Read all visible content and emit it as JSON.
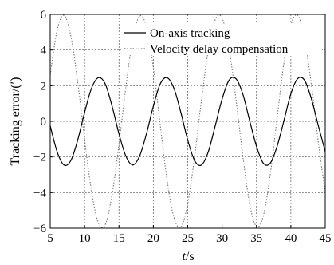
{
  "chart_data": {
    "type": "line",
    "xlabel_var": "t",
    "xlabel_unit": "/s",
    "ylabel": "Tracking error/(′)",
    "xlim": [
      5,
      45
    ],
    "ylim": [
      -6,
      6
    ],
    "x_ticks": [
      5,
      10,
      15,
      20,
      25,
      30,
      35,
      40,
      45
    ],
    "y_ticks": [
      -6,
      -4,
      -2,
      0,
      2,
      4,
      6
    ],
    "x_tick_labels": [
      "5",
      "10",
      "15",
      "20",
      "25",
      "30",
      "35",
      "40",
      "45"
    ],
    "y_tick_labels": [
      "−6",
      "−4",
      "−2",
      "0",
      "2",
      "4",
      "6"
    ],
    "grid": true,
    "legend_position": "top-right",
    "series": [
      {
        "name": "On-axis tracking",
        "style": "solid",
        "color": "#000000",
        "x": [
          5,
          6,
          7,
          8,
          9,
          10,
          11,
          12,
          13,
          14,
          15,
          16,
          17,
          18,
          19,
          20,
          21,
          22,
          23,
          24,
          25,
          26,
          27,
          28,
          29,
          30,
          31,
          32,
          33,
          34,
          35,
          36,
          37,
          38,
          39,
          40,
          41,
          42,
          43,
          44,
          45
        ],
        "y": [
          -0.25,
          -1.7,
          -2.45,
          -2.2,
          -1.05,
          0.5,
          1.85,
          2.45,
          2.1,
          0.85,
          -0.7,
          -1.95,
          -2.45,
          -1.95,
          -0.7,
          0.85,
          2.1,
          2.45,
          1.85,
          0.5,
          -1.05,
          -2.2,
          -2.45,
          -1.7,
          -0.25,
          1.25,
          2.3,
          2.4,
          1.55,
          0.05,
          -1.4,
          -2.35,
          -2.35,
          -1.4,
          0.05,
          1.55,
          2.4,
          2.3,
          1.25,
          -0.25,
          -1.7
        ]
      },
      {
        "name": "Velocity delay compensation",
        "style": "dotted",
        "color": "#7a7a7a",
        "x": [
          5,
          6,
          7,
          8,
          9,
          10,
          11,
          12,
          13,
          14,
          15,
          16,
          17,
          18,
          19,
          20,
          21,
          22,
          23,
          24,
          25,
          26,
          27,
          28,
          29,
          30,
          31,
          32,
          33,
          34,
          35,
          36,
          37,
          38,
          39,
          40,
          41,
          42,
          43,
          44,
          45
        ],
        "y": [
          2.6,
          5.1,
          5.95,
          4.8,
          2.2,
          -1.0,
          -3.9,
          -5.7,
          -5.8,
          -4.1,
          -1.3,
          1.9,
          4.6,
          5.9,
          5.3,
          3.0,
          -0.2,
          -3.3,
          -5.4,
          -5.95,
          -4.6,
          -2.0,
          1.2,
          4.0,
          5.7,
          5.8,
          4.1,
          1.3,
          -1.9,
          -4.6,
          -5.9,
          -5.3,
          -3.0,
          0.2,
          3.3,
          5.4,
          5.95,
          4.6,
          2.0,
          -1.2,
          -4.0
        ]
      }
    ]
  }
}
